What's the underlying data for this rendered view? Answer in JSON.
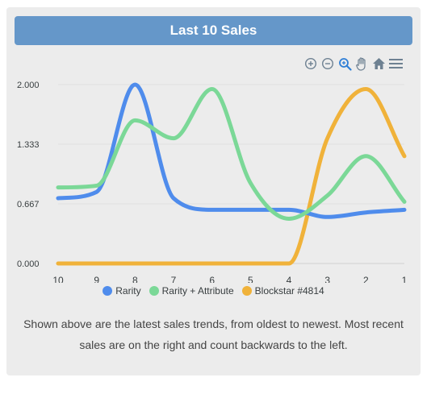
{
  "header": {
    "title": "Last 10 Sales"
  },
  "toolbar": {
    "icons": [
      "zoom-in-icon",
      "zoom-out-icon",
      "zoom-selection-icon",
      "pan-icon",
      "reset-home-icon",
      "menu-icon"
    ]
  },
  "caption": "Shown above are the latest sales trends, from oldest to newest. Most recent sales are on the right and count backwards to the left.",
  "colors": {
    "header_bg": "#6597c9",
    "rarity": "#4f8cec",
    "rarity_attribute": "#7bd897",
    "blockstar": "#f0b23a",
    "toolbar_active": "#2e7ed6",
    "toolbar_icon": "#6e8192"
  },
  "chart_data": {
    "type": "line",
    "title": "",
    "xlabel": "",
    "ylabel": "",
    "categories": [
      "10",
      "9",
      "8",
      "7",
      "6",
      "5",
      "4",
      "3",
      "2",
      "1"
    ],
    "ylim": [
      0,
      2.0
    ],
    "yticks": [
      "0.000",
      "0.667",
      "1.333",
      "2.000"
    ],
    "grid": true,
    "legend_position": "bottom-center",
    "curve": "smooth",
    "series": [
      {
        "name": "Rarity",
        "color": "#4f8cec",
        "values": [
          0.73,
          0.8,
          2.0,
          0.73,
          0.6,
          0.6,
          0.6,
          0.52,
          0.57,
          0.6
        ]
      },
      {
        "name": "Rarity + Attribute",
        "color": "#7bd897",
        "values": [
          0.85,
          0.87,
          1.6,
          1.4,
          1.95,
          0.9,
          0.5,
          0.76,
          1.2,
          0.69
        ]
      },
      {
        "name": "Blockstar #4814",
        "color": "#f0b23a",
        "values": [
          0.0,
          0.0,
          0.0,
          0.0,
          0.0,
          0.0,
          0.0,
          1.4,
          1.95,
          1.2
        ]
      }
    ]
  }
}
